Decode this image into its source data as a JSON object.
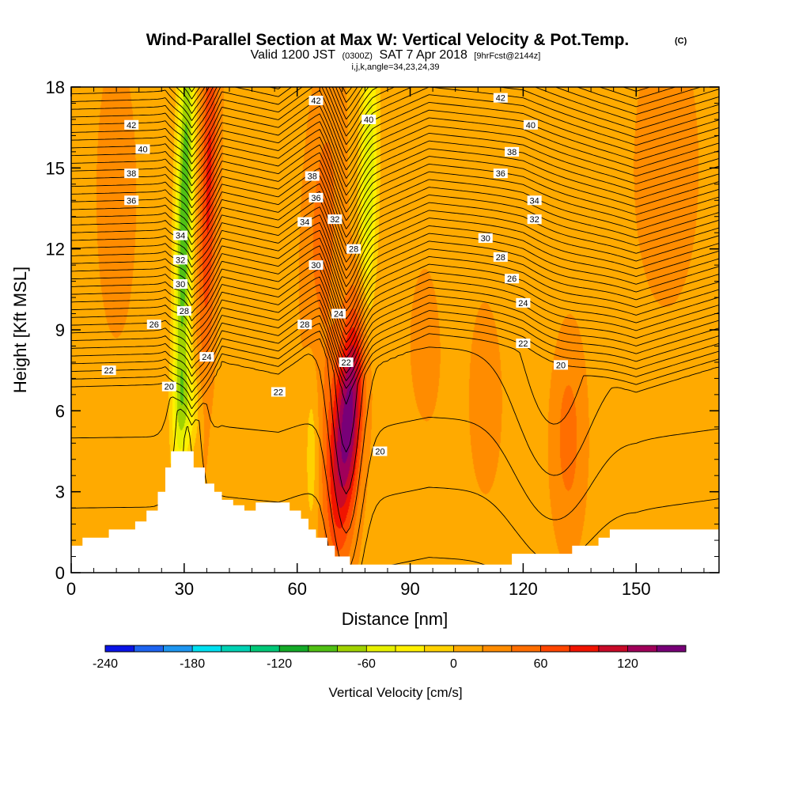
{
  "chart_data": {
    "type": "heatmap",
    "title": "Wind-Parallel Section at Max W: Vertical Velocity & Pot.Temp.",
    "title_mark": "(C)",
    "subtitle_a": "Valid 1200 JST",
    "subtitle_b": "(0300Z)",
    "subtitle_c": "SAT 7 Apr 2018",
    "subtitle_d": "[9hrFcst@2144z]",
    "subtitle2": "i,j,k,angle=34,23,24,39",
    "xlabel": "Distance [nm]",
    "ylabel": "Height [Kft MSL]",
    "xlim": [
      0,
      172
    ],
    "ylim": [
      0,
      18
    ],
    "x_ticks": [
      "0",
      "30",
      "60",
      "90",
      "120",
      "150"
    ],
    "y_ticks": [
      "0",
      "3",
      "6",
      "9",
      "12",
      "15",
      "18"
    ],
    "colorbar": {
      "label": "Vertical Velocity [cm/s]",
      "ticks": [
        "-240",
        "-180",
        "-120",
        "-60",
        "0",
        "60",
        "120"
      ],
      "levels": [
        -240,
        -220,
        -200,
        -180,
        -160,
        -140,
        -120,
        -100,
        -80,
        -60,
        -40,
        -20,
        0,
        20,
        40,
        60,
        80,
        100,
        120,
        140,
        160
      ],
      "colors": [
        "#0a14e6",
        "#1e64f0",
        "#1e96f0",
        "#00e0f0",
        "#00d2b4",
        "#00c878",
        "#14aa28",
        "#50c014",
        "#a0d200",
        "#e6f000",
        "#fff000",
        "#ffd200",
        "#ffaa00",
        "#ff8c00",
        "#ff6e00",
        "#ff4600",
        "#f01400",
        "#c80a28",
        "#a0005a",
        "#780078"
      ]
    },
    "background_w": 15,
    "vertical_velocity_features": [
      {
        "x": 30,
        "y": 13,
        "sx": 1.6,
        "sy": 6.0,
        "w": -115,
        "tilt": 0.15
      },
      {
        "x": 31,
        "y": 6.2,
        "sx": 2.5,
        "sy": 1.2,
        "w": -45,
        "tilt": 0
      },
      {
        "x": 36.5,
        "y": 14.5,
        "sx": 1.6,
        "sy": 5.0,
        "w": 70,
        "tilt": 0.15
      },
      {
        "x": 79,
        "y": 14.5,
        "sx": 1.7,
        "sy": 4.0,
        "w": -75,
        "tilt": 0.1
      },
      {
        "x": 74,
        "y": 6.0,
        "sx": 2.6,
        "sy": 2.8,
        "w": 122,
        "tilt": 0.45
      },
      {
        "x": 70,
        "y": 4.0,
        "sx": 3.0,
        "sy": 3.0,
        "w": 45,
        "tilt": 0
      },
      {
        "x": 67,
        "y": 13.0,
        "sx": 3.2,
        "sy": 3.6,
        "w": 35,
        "tilt": 0.3
      },
      {
        "x": 64,
        "y": 4.5,
        "sx": 1.4,
        "sy": 2.5,
        "w": -30,
        "tilt": 0
      },
      {
        "x": 132,
        "y": 5.0,
        "sx": 2.8,
        "sy": 2.4,
        "w": 35,
        "tilt": 0
      },
      {
        "x": 122,
        "y": 14.0,
        "sx": 5.0,
        "sy": 3.5,
        "w": -12,
        "tilt": 0
      },
      {
        "x": 100,
        "y": 13.0,
        "sx": 2.5,
        "sy": 5.0,
        "w": -15,
        "tilt": 0
      },
      {
        "x": 50,
        "y": 12.5,
        "sx": 4.0,
        "sy": 5.0,
        "w": -10,
        "tilt": 0
      },
      {
        "x": 110,
        "y": 6.5,
        "sx": 2.5,
        "sy": 2.0,
        "w": 25,
        "tilt": 0
      },
      {
        "x": 158,
        "y": 15.0,
        "sx": 5.0,
        "sy": 3.0,
        "w": 22,
        "tilt": 0
      },
      {
        "x": 12,
        "y": 14.0,
        "sx": 4.0,
        "sy": 4.0,
        "w": 12,
        "tilt": 0
      },
      {
        "x": 95,
        "y": 8.5,
        "sx": 3.0,
        "sy": 1.8,
        "w": 20,
        "tilt": 0
      }
    ],
    "potential_temperature": {
      "levels_min": 16,
      "levels_max": 44.5,
      "interval": 0.5,
      "lower_lapse": 0.55,
      "upper_lapse": 1.75,
      "inversion_height": [
        [
          0,
          6.8
        ],
        [
          25,
          6.9
        ],
        [
          32,
          5.2
        ],
        [
          40,
          7.8
        ],
        [
          55,
          7.3
        ],
        [
          66,
          8.5
        ],
        [
          73,
          6.6
        ],
        [
          80,
          7.6
        ],
        [
          95,
          8.6
        ],
        [
          120,
          8.2
        ],
        [
          140,
          7.1
        ],
        [
          150,
          6.6
        ],
        [
          172,
          7.6
        ]
      ],
      "displacement_features": [
        {
          "x": 31,
          "y": 10.0,
          "sx": 2.8,
          "sy": 7.0,
          "d": -1.5
        },
        {
          "x": 73,
          "y": 8.0,
          "sx": 3.2,
          "sy": 7.0,
          "d": 1.8
        },
        {
          "x": 128,
          "y": 6.5,
          "sx": 8.0,
          "sy": 5.0,
          "d": 1.0
        }
      ],
      "labels": [
        {
          "x": 16,
          "y": 16.6,
          "text": "42"
        },
        {
          "x": 19,
          "y": 15.7,
          "text": "40"
        },
        {
          "x": 16,
          "y": 14.8,
          "text": "38"
        },
        {
          "x": 16,
          "y": 13.8,
          "text": "36"
        },
        {
          "x": 29,
          "y": 12.5,
          "text": "34"
        },
        {
          "x": 29,
          "y": 11.6,
          "text": "32"
        },
        {
          "x": 29,
          "y": 10.7,
          "text": "30"
        },
        {
          "x": 30,
          "y": 9.7,
          "text": "28"
        },
        {
          "x": 22,
          "y": 9.2,
          "text": "26"
        },
        {
          "x": 36,
          "y": 8.0,
          "text": "24"
        },
        {
          "x": 10,
          "y": 7.5,
          "text": "22"
        },
        {
          "x": 26,
          "y": 6.9,
          "text": "20"
        },
        {
          "x": 55,
          "y": 6.7,
          "text": "22"
        },
        {
          "x": 64,
          "y": 14.7,
          "text": "38"
        },
        {
          "x": 65,
          "y": 13.9,
          "text": "36"
        },
        {
          "x": 62,
          "y": 13.0,
          "text": "34"
        },
        {
          "x": 70,
          "y": 13.1,
          "text": "32"
        },
        {
          "x": 65,
          "y": 11.4,
          "text": "30"
        },
        {
          "x": 75,
          "y": 12.0,
          "text": "28"
        },
        {
          "x": 62,
          "y": 9.2,
          "text": "28"
        },
        {
          "x": 71,
          "y": 9.6,
          "text": "24"
        },
        {
          "x": 73,
          "y": 7.8,
          "text": "22"
        },
        {
          "x": 82,
          "y": 4.5,
          "text": "20"
        },
        {
          "x": 65,
          "y": 17.5,
          "text": "42"
        },
        {
          "x": 79,
          "y": 16.8,
          "text": "40"
        },
        {
          "x": 114,
          "y": 17.6,
          "text": "42"
        },
        {
          "x": 122,
          "y": 16.6,
          "text": "40"
        },
        {
          "x": 117,
          "y": 15.6,
          "text": "38"
        },
        {
          "x": 114,
          "y": 14.8,
          "text": "36"
        },
        {
          "x": 123,
          "y": 13.8,
          "text": "34"
        },
        {
          "x": 123,
          "y": 13.1,
          "text": "32"
        },
        {
          "x": 110,
          "y": 12.4,
          "text": "30"
        },
        {
          "x": 114,
          "y": 11.7,
          "text": "28"
        },
        {
          "x": 117,
          "y": 10.9,
          "text": "26"
        },
        {
          "x": 120,
          "y": 10.0,
          "text": "24"
        },
        {
          "x": 120,
          "y": 8.5,
          "text": "22"
        },
        {
          "x": 130,
          "y": 7.7,
          "text": "20"
        }
      ]
    },
    "terrain_kft": [
      [
        0,
        1.0
      ],
      [
        3,
        1.0
      ],
      [
        3,
        1.3
      ],
      [
        10,
        1.3
      ],
      [
        10,
        1.6
      ],
      [
        17,
        1.6
      ],
      [
        17,
        1.9
      ],
      [
        20,
        1.9
      ],
      [
        20,
        2.3
      ],
      [
        23,
        2.3
      ],
      [
        23,
        3.0
      ],
      [
        25,
        3.0
      ],
      [
        25,
        3.9
      ],
      [
        26.5,
        3.9
      ],
      [
        26.5,
        4.5
      ],
      [
        32.5,
        4.5
      ],
      [
        32.5,
        3.9
      ],
      [
        35.5,
        3.9
      ],
      [
        35.5,
        3.3
      ],
      [
        38,
        3.3
      ],
      [
        38,
        3.0
      ],
      [
        40,
        3.0
      ],
      [
        40,
        2.7
      ],
      [
        43,
        2.7
      ],
      [
        43,
        2.5
      ],
      [
        46,
        2.5
      ],
      [
        46,
        2.3
      ],
      [
        49,
        2.3
      ],
      [
        49,
        2.6
      ],
      [
        58,
        2.6
      ],
      [
        58,
        2.3
      ],
      [
        61,
        2.3
      ],
      [
        61,
        2.0
      ],
      [
        63,
        2.0
      ],
      [
        63,
        1.6
      ],
      [
        65,
        1.6
      ],
      [
        65,
        1.3
      ],
      [
        68,
        1.3
      ],
      [
        68,
        1.0
      ],
      [
        70,
        1.0
      ],
      [
        70,
        0.6
      ],
      [
        74,
        0.6
      ],
      [
        74,
        0.3
      ],
      [
        117,
        0.3
      ],
      [
        117,
        0.7
      ],
      [
        133,
        0.7
      ],
      [
        133,
        1.0
      ],
      [
        140,
        1.0
      ],
      [
        140,
        1.3
      ],
      [
        143,
        1.3
      ],
      [
        143,
        1.6
      ],
      [
        172,
        1.6
      ]
    ]
  }
}
